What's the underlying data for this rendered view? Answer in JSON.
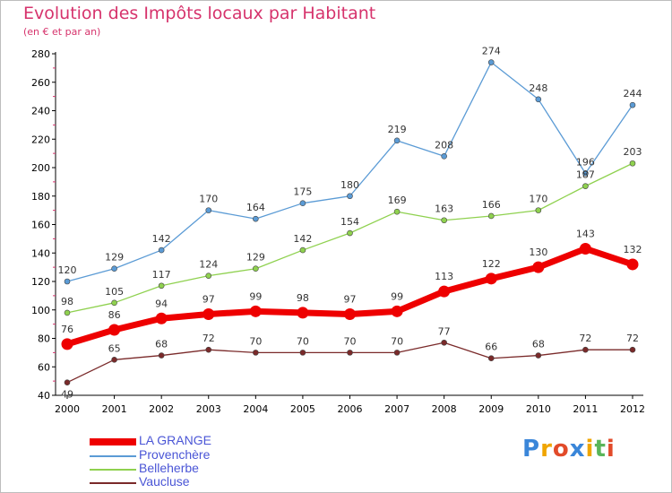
{
  "title": "Evolution des Impôts locaux par Habitant",
  "subtitle": "(en € et par an)",
  "logo": {
    "text": "Proxiti",
    "colors": [
      "#3a86d9",
      "#f0a500",
      "#e24b2a",
      "#3a86d9",
      "#f0a500",
      "#5ab55a",
      "#e24b2a"
    ]
  },
  "chart_data": {
    "type": "line",
    "x": [
      "2000",
      "2001",
      "2002",
      "2003",
      "2004",
      "2005",
      "2006",
      "2007",
      "2008",
      "2009",
      "2010",
      "2011",
      "2012"
    ],
    "ylim": [
      40,
      280
    ],
    "yticks": [
      40,
      60,
      80,
      100,
      120,
      140,
      160,
      180,
      200,
      220,
      240,
      260,
      280
    ],
    "grid": false,
    "legend_position": "bottom-left",
    "series": [
      {
        "name": "LA GRANGE",
        "color": "#ee0000",
        "values": [
          76,
          86,
          94,
          97,
          99,
          98,
          97,
          99,
          113,
          122,
          130,
          143,
          132
        ]
      },
      {
        "name": "Provenchère",
        "color": "#5b9bd5",
        "values": [
          120,
          129,
          142,
          170,
          164,
          175,
          180,
          219,
          208,
          274,
          248,
          196,
          244
        ]
      },
      {
        "name": "Belleherbe",
        "color": "#8fd14f",
        "values": [
          98,
          105,
          117,
          124,
          129,
          142,
          154,
          169,
          163,
          166,
          170,
          187,
          203
        ]
      },
      {
        "name": "Vaucluse",
        "color": "#7a2a2a",
        "values": [
          49,
          65,
          68,
          72,
          70,
          70,
          70,
          70,
          77,
          66,
          68,
          72,
          72
        ]
      }
    ]
  }
}
